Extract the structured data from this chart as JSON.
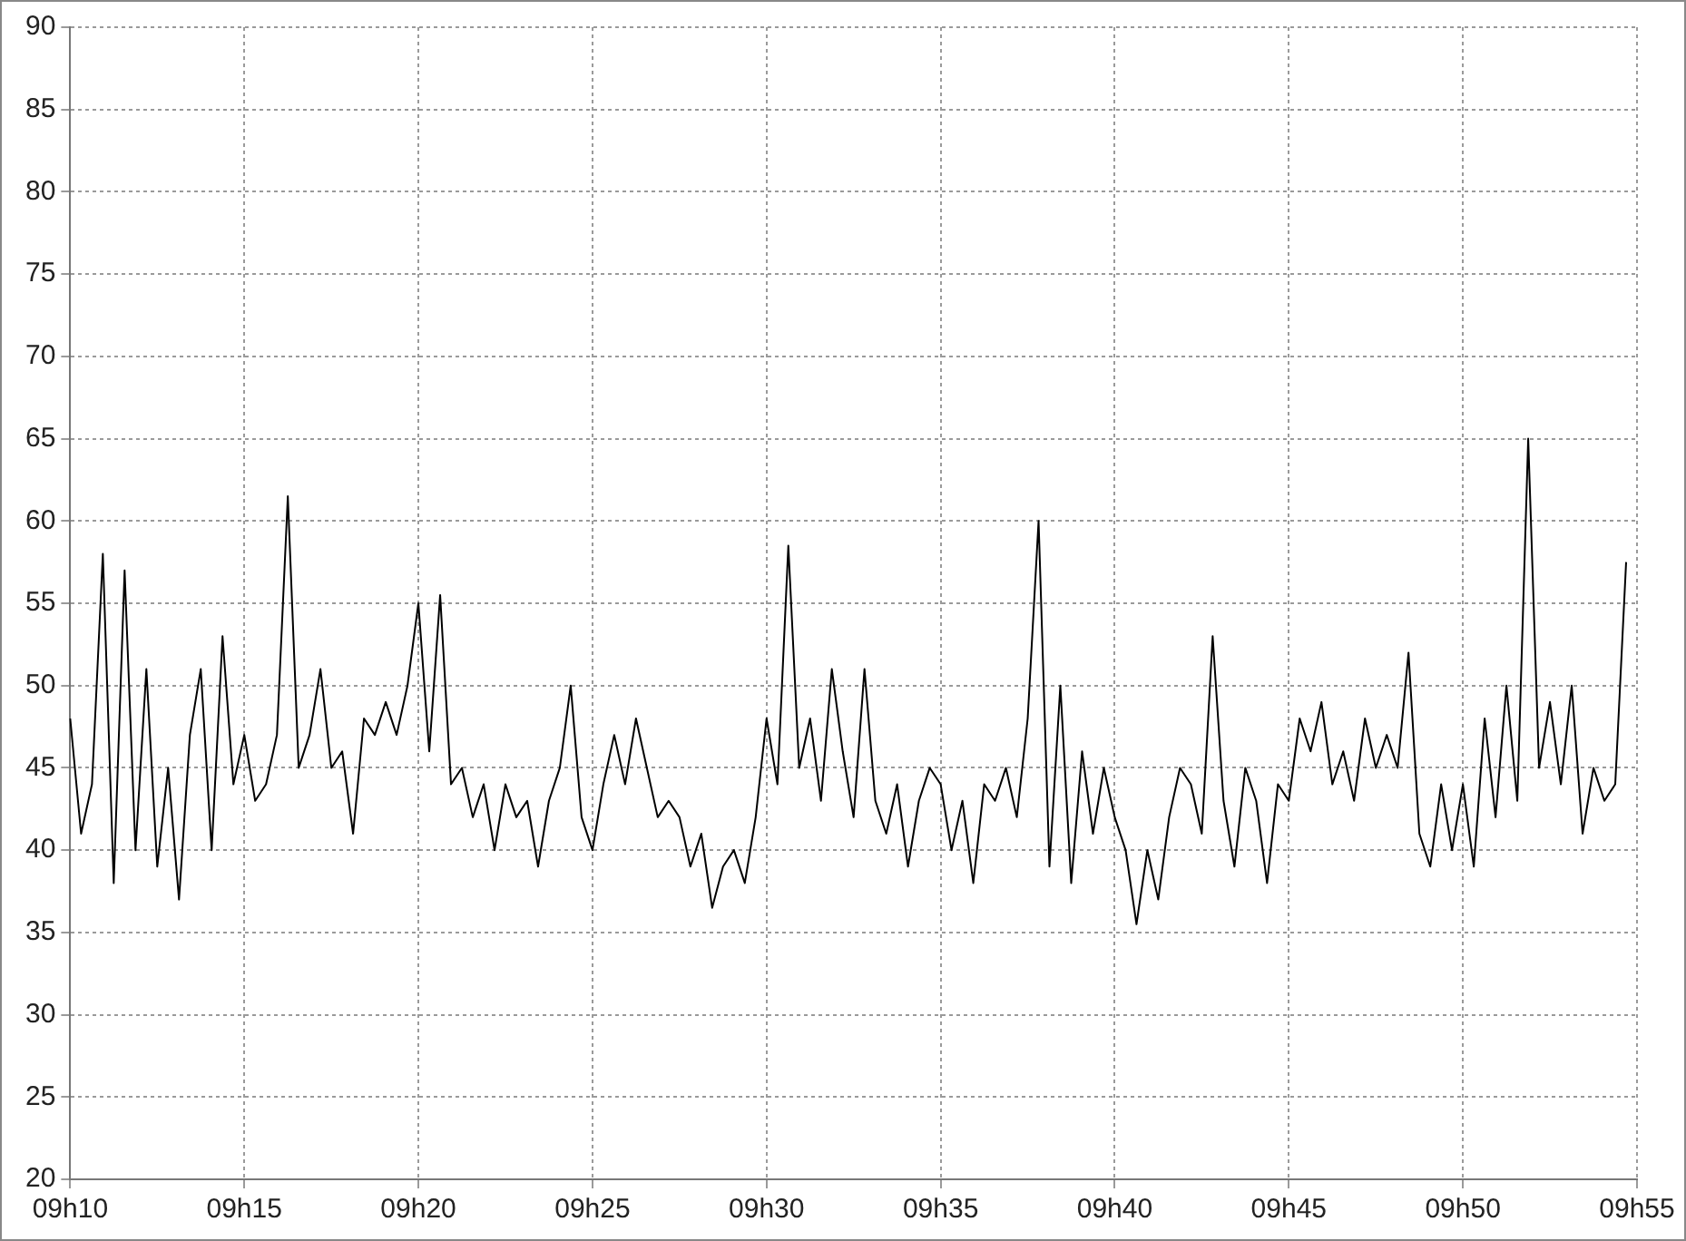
{
  "chart_data": {
    "type": "line",
    "categories": [
      "09h10",
      null,
      null,
      null,
      null,
      null,
      null,
      null,
      null,
      null,
      null,
      null,
      null,
      null,
      null,
      null,
      "09h15",
      null,
      null,
      null,
      null,
      null,
      null,
      null,
      null,
      null,
      null,
      null,
      null,
      null,
      null,
      null,
      "09h20",
      null,
      null,
      null,
      null,
      null,
      null,
      null,
      null,
      null,
      null,
      null,
      null,
      null,
      null,
      null,
      "09h25",
      null,
      null,
      null,
      null,
      null,
      null,
      null,
      null,
      null,
      null,
      null,
      null,
      null,
      null,
      null,
      "09h30",
      null,
      null,
      null,
      null,
      null,
      null,
      null,
      null,
      null,
      null,
      null,
      null,
      null,
      null,
      null,
      "09h35",
      null,
      null,
      null,
      null,
      null,
      null,
      null,
      null,
      null,
      null,
      null,
      null,
      null,
      null,
      null,
      "09h40",
      null,
      null,
      null,
      null,
      null,
      null,
      null,
      null,
      null,
      null,
      null,
      null,
      null,
      null,
      null,
      "09h45",
      null,
      null,
      null,
      null,
      null,
      null,
      null,
      null,
      null,
      null,
      null,
      null,
      null,
      null,
      null,
      "09h50",
      null,
      null,
      null,
      null,
      null,
      null,
      null,
      null,
      null,
      null,
      null,
      null,
      null,
      null,
      null,
      "09h55"
    ],
    "series": [
      {
        "color": "#000000",
        "values": [
          48,
          41,
          44,
          58,
          38,
          57,
          40,
          51,
          39,
          45,
          37,
          47,
          51,
          40,
          53,
          44,
          47,
          43,
          44,
          47,
          61.5,
          45,
          47,
          51,
          45,
          46,
          41,
          48,
          47,
          49,
          47,
          50,
          55,
          46,
          55.5,
          44,
          45,
          42,
          44,
          40,
          44,
          42,
          43,
          39,
          43,
          45,
          50,
          42,
          40,
          44,
          47,
          44,
          48,
          45,
          42,
          43,
          42,
          39,
          41,
          36.5,
          39,
          40,
          38,
          42,
          48,
          44,
          58.5,
          45,
          48,
          43,
          51,
          46,
          42,
          51,
          43,
          41,
          44,
          39,
          43,
          45,
          44,
          40,
          43,
          38,
          44,
          43,
          45,
          42,
          48,
          60,
          39,
          50,
          38,
          46,
          41,
          45,
          42,
          40,
          35.5,
          40,
          37,
          42,
          45,
          44,
          41,
          53,
          43,
          39,
          45,
          43,
          38,
          44,
          43,
          48,
          46,
          49,
          44,
          46,
          43,
          48,
          45,
          47,
          45,
          52,
          41,
          39,
          44,
          40,
          44,
          39,
          48,
          42,
          50,
          43,
          65,
          45,
          49,
          44,
          50,
          41,
          45,
          43,
          44,
          57.5,
          null
        ]
      }
    ],
    "ylim": [
      20,
      90
    ],
    "yticks": [
      20,
      25,
      30,
      35,
      40,
      45,
      50,
      55,
      60,
      65,
      70,
      75,
      80,
      85,
      90
    ],
    "grid": true,
    "marker": "none"
  }
}
